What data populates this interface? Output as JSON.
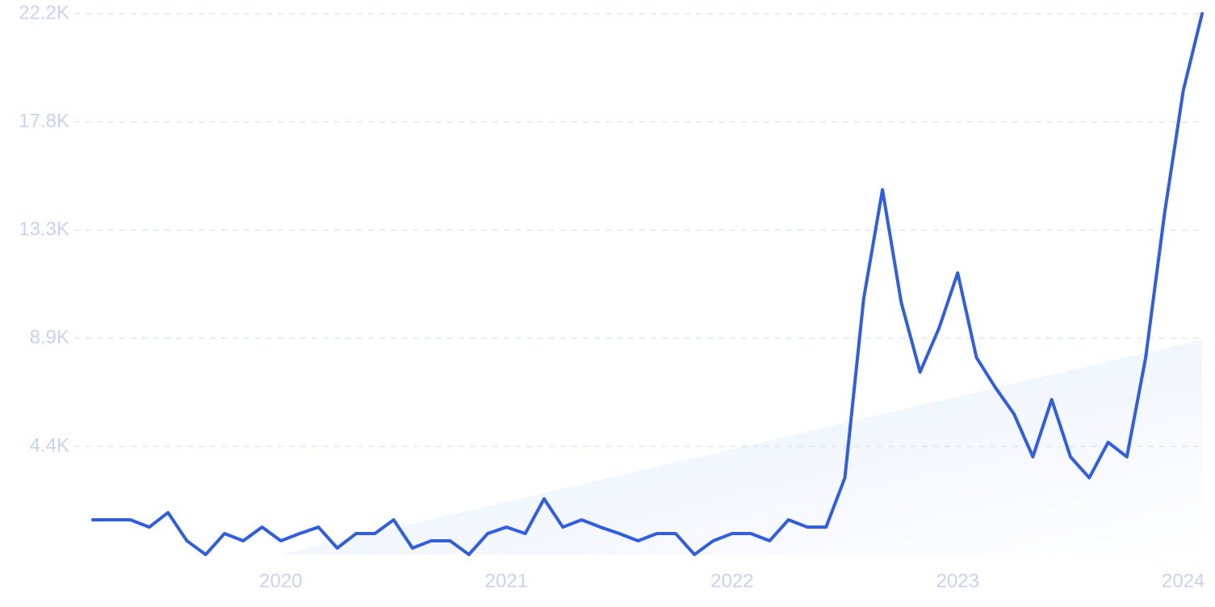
{
  "chart_data": {
    "type": "line",
    "categories": [
      null,
      null,
      null,
      null,
      null,
      null,
      null,
      null,
      null,
      null,
      "2020",
      null,
      null,
      null,
      null,
      null,
      null,
      null,
      null,
      null,
      null,
      null,
      "2021",
      null,
      null,
      null,
      null,
      null,
      null,
      null,
      null,
      null,
      null,
      null,
      "2022",
      null,
      null,
      null,
      null,
      null,
      null,
      null,
      null,
      null,
      null,
      null,
      "2023",
      null,
      null,
      null,
      null,
      null,
      null,
      null,
      null,
      null,
      null,
      null,
      "2024",
      null
    ],
    "values": [
      1425,
      1425,
      1425,
      1125,
      1720,
      565,
      0,
      860,
      565,
      1125,
      565,
      860,
      1125,
      265,
      860,
      860,
      1425,
      265,
      565,
      565,
      0,
      860,
      1125,
      860,
      2285,
      1125,
      1425,
      1125,
      860,
      565,
      860,
      860,
      0,
      565,
      860,
      860,
      565,
      1425,
      1125,
      1125,
      3150,
      10500,
      14975,
      10340,
      7490,
      9275,
      11560,
      8085,
      6860,
      5765,
      4010,
      6360,
      4010,
      3150,
      4605,
      4010,
      8085,
      13980,
      19050,
      22200
    ],
    "trend": [
      null,
      null,
      null,
      null,
      null,
      null,
      null,
      null,
      null,
      null,
      0,
      180,
      360,
      540,
      720,
      900,
      1080,
      1260,
      1440,
      1620,
      1800,
      1980,
      2160,
      2340,
      2520,
      2700,
      2880,
      3060,
      3240,
      3420,
      3600,
      3780,
      3960,
      4140,
      4320,
      4500,
      4680,
      4860,
      5040,
      5220,
      5400,
      5580,
      5760,
      5940,
      6120,
      6300,
      6480,
      6660,
      6840,
      7020,
      7200,
      7380,
      7560,
      7740,
      7920,
      8100,
      8280,
      8460,
      8640,
      8820
    ],
    "color": "#2f5de3",
    "ylim": [
      0,
      22200
    ],
    "yticks": [
      {
        "value": 4440,
        "label": "4.4K"
      },
      {
        "value": 8880,
        "label": "8.9K"
      },
      {
        "value": 13320,
        "label": "13.3K"
      },
      {
        "value": 17760,
        "label": "17.8K"
      },
      {
        "value": 22200,
        "label": "22.2K"
      }
    ],
    "grid": true
  }
}
